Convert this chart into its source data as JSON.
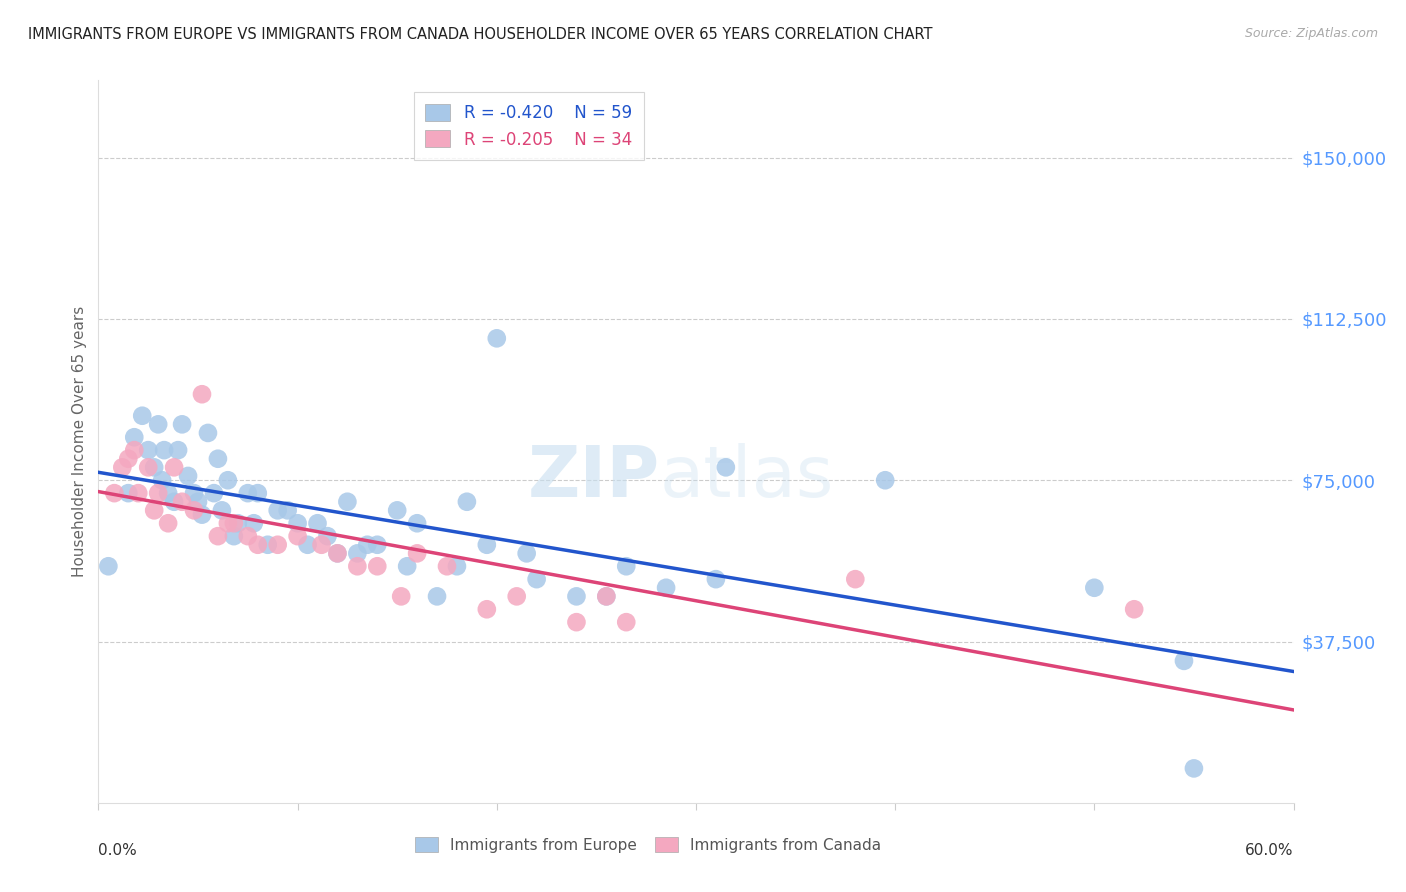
{
  "title": "IMMIGRANTS FROM EUROPE VS IMMIGRANTS FROM CANADA HOUSEHOLDER INCOME OVER 65 YEARS CORRELATION CHART",
  "source": "Source: ZipAtlas.com",
  "ylabel": "Householder Income Over 65 years",
  "yticks": [
    37500,
    75000,
    112500,
    150000
  ],
  "ytick_labels": [
    "$37,500",
    "$75,000",
    "$112,500",
    "$150,000"
  ],
  "xlim": [
    0.0,
    0.6
  ],
  "ylim": [
    0,
    168000
  ],
  "watermark_left": "ZIP",
  "watermark_right": "atlas",
  "europe_color": "#a8c8e8",
  "canada_color": "#f4a8c0",
  "europe_line_color": "#2255cc",
  "canada_line_color": "#dd4477",
  "background_color": "#ffffff",
  "grid_color": "#cccccc",
  "title_color": "#222222",
  "axis_label_color": "#666666",
  "ytick_color": "#5599ff",
  "europe_scatter_x": [
    0.005,
    0.015,
    0.018,
    0.022,
    0.025,
    0.028,
    0.03,
    0.032,
    0.033,
    0.035,
    0.038,
    0.04,
    0.042,
    0.045,
    0.048,
    0.05,
    0.052,
    0.055,
    0.058,
    0.06,
    0.062,
    0.065,
    0.068,
    0.07,
    0.075,
    0.078,
    0.08,
    0.085,
    0.09,
    0.095,
    0.1,
    0.105,
    0.11,
    0.115,
    0.12,
    0.125,
    0.13,
    0.135,
    0.14,
    0.15,
    0.155,
    0.16,
    0.17,
    0.18,
    0.185,
    0.195,
    0.2,
    0.215,
    0.22,
    0.24,
    0.255,
    0.265,
    0.285,
    0.31,
    0.315,
    0.395,
    0.5,
    0.545,
    0.55
  ],
  "europe_scatter_y": [
    55000,
    72000,
    85000,
    90000,
    82000,
    78000,
    88000,
    75000,
    82000,
    72000,
    70000,
    82000,
    88000,
    76000,
    72000,
    70000,
    67000,
    86000,
    72000,
    80000,
    68000,
    75000,
    62000,
    65000,
    72000,
    65000,
    72000,
    60000,
    68000,
    68000,
    65000,
    60000,
    65000,
    62000,
    58000,
    70000,
    58000,
    60000,
    60000,
    68000,
    55000,
    65000,
    48000,
    55000,
    70000,
    60000,
    108000,
    58000,
    52000,
    48000,
    48000,
    55000,
    50000,
    52000,
    78000,
    75000,
    50000,
    33000,
    8000
  ],
  "canada_scatter_x": [
    0.008,
    0.012,
    0.015,
    0.018,
    0.02,
    0.025,
    0.028,
    0.03,
    0.035,
    0.038,
    0.042,
    0.048,
    0.052,
    0.06,
    0.065,
    0.068,
    0.075,
    0.08,
    0.09,
    0.1,
    0.112,
    0.12,
    0.13,
    0.14,
    0.152,
    0.16,
    0.175,
    0.195,
    0.21,
    0.24,
    0.255,
    0.265,
    0.38,
    0.52
  ],
  "canada_scatter_y": [
    72000,
    78000,
    80000,
    82000,
    72000,
    78000,
    68000,
    72000,
    65000,
    78000,
    70000,
    68000,
    95000,
    62000,
    65000,
    65000,
    62000,
    60000,
    60000,
    62000,
    60000,
    58000,
    55000,
    55000,
    48000,
    58000,
    55000,
    45000,
    48000,
    42000,
    48000,
    42000,
    52000,
    45000
  ]
}
